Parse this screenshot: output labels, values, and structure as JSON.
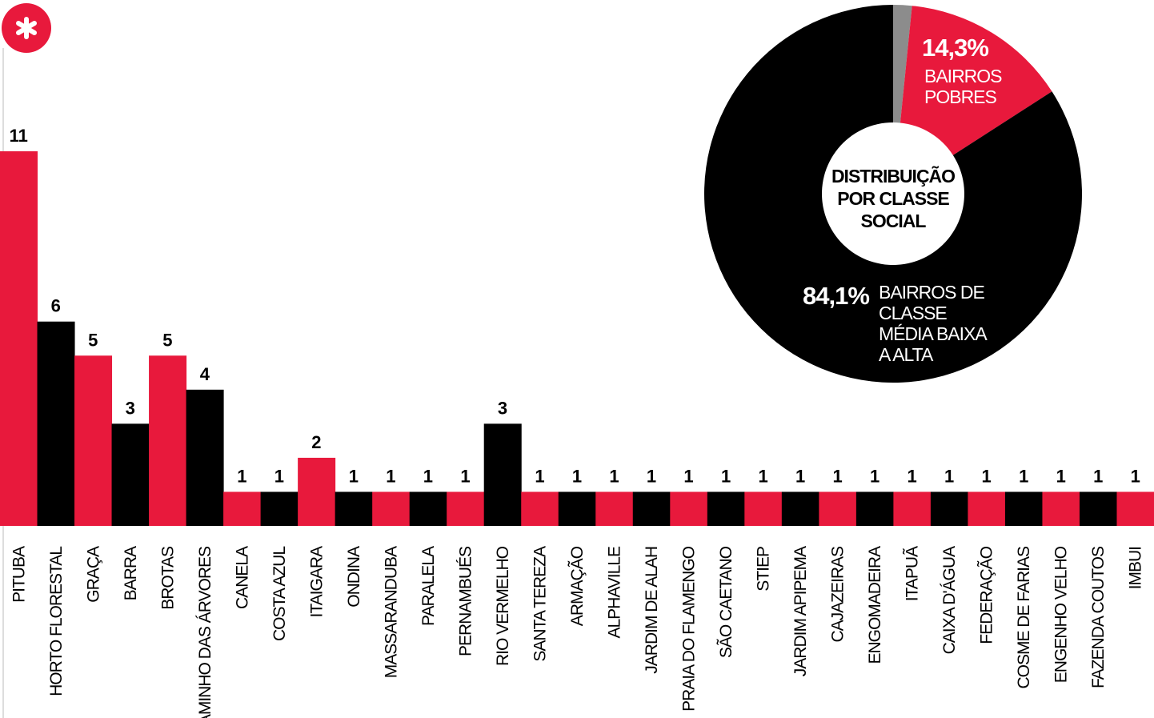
{
  "chart_data": [
    {
      "type": "bar",
      "categories": [
        "PITUBA",
        "HORTO FLORESTAL",
        "GRAÇA",
        "BARRA",
        "BROTAS",
        "CAMINHO DAS ÁRVORES",
        "CANELA",
        "COSTA AZUL",
        "ITAIGARA",
        "ONDINA",
        "MASSARANDUBA",
        "PARALELA",
        "PERNAMBUÉS",
        "RIO VERMELHO",
        "SANTA TEREZA",
        "ARMAÇÃO",
        "ALPHAVILLE",
        "JARDIM DE ALAH",
        "PRAIA DO FLAMENGO",
        "SÃO CAETANO",
        "STIEP",
        "JARDIM APIPEMA",
        "CAJAZEIRAS",
        "ENGOMADEIRA",
        "ITAPUÃ",
        "CAIXA D'ÁGUA",
        "FEDERAÇÃO",
        "COSME DE FARIAS",
        "ENGENHO VELHO",
        "FAZENDA COUTOS",
        "IMBUI"
      ],
      "values": [
        11,
        6,
        5,
        3,
        5,
        4,
        1,
        1,
        2,
        1,
        1,
        1,
        1,
        3,
        1,
        1,
        1,
        1,
        1,
        1,
        1,
        1,
        1,
        1,
        1,
        1,
        1,
        1,
        1,
        1,
        1
      ],
      "colors": [
        "#e8193c",
        "#000000"
      ]
    },
    {
      "type": "pie",
      "donut": true,
      "title": "DISTRIBUIÇÃO POR CLASSE SOCIAL",
      "categories": [
        null,
        "BAIRROS POBRES",
        "BAIRROS DE CLASSE MÉDIA BAIXA A ALTA"
      ],
      "values": [
        1.6,
        14.3,
        84.1
      ],
      "value_labels": [
        null,
        "14,3%",
        "84,1%"
      ],
      "colors": [
        "#8c8c8c",
        "#e8193c",
        "#000000"
      ]
    }
  ]
}
